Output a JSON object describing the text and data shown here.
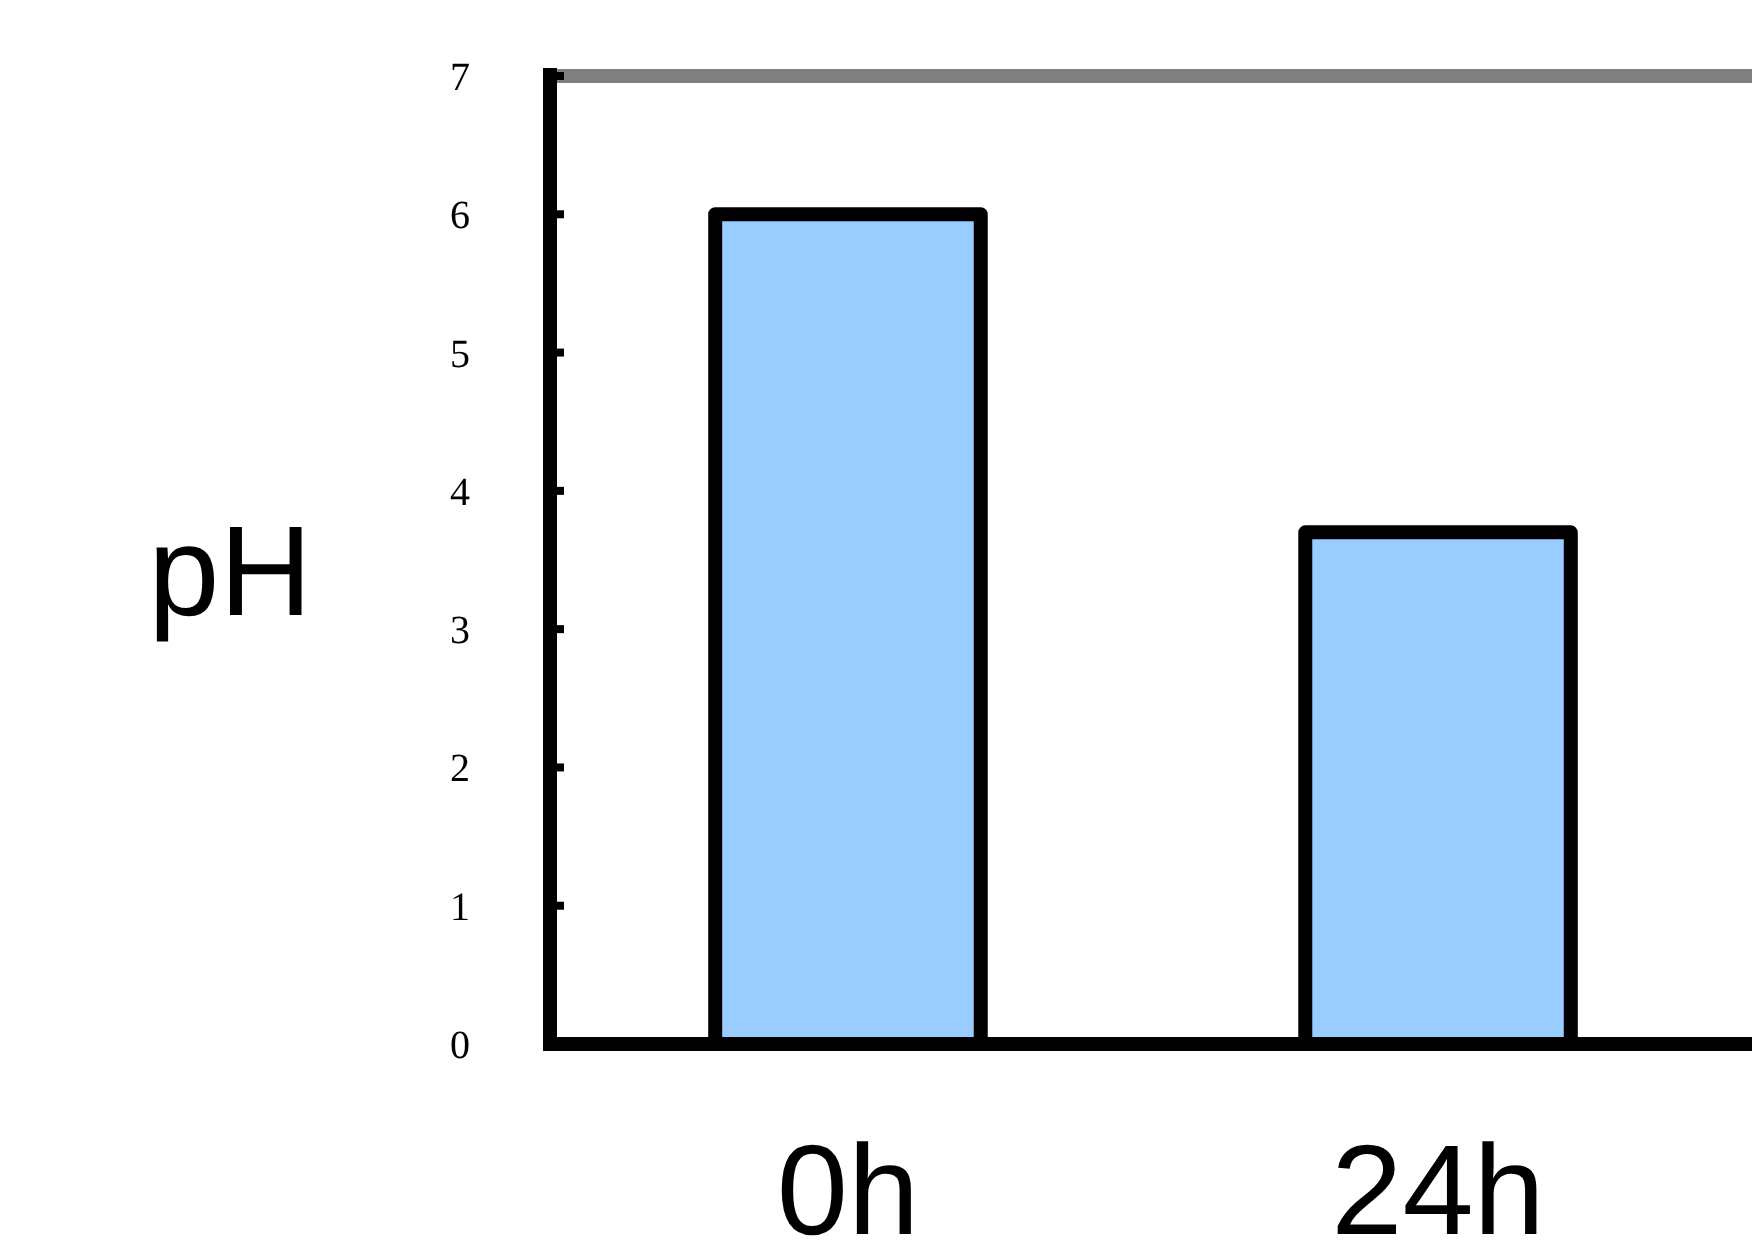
{
  "chart_data": {
    "type": "bar",
    "ylabel": "pH",
    "categories": [
      "0h",
      "24h"
    ],
    "values": [
      6.0,
      3.7
    ],
    "color": "#99ccff",
    "ylim": [
      0,
      7
    ],
    "yticks": [
      0,
      1,
      2,
      3,
      4,
      5,
      6,
      7
    ],
    "ref_lines": [
      {
        "axis": "y",
        "value": 7,
        "color": "#808080"
      }
    ],
    "grid": false
  }
}
